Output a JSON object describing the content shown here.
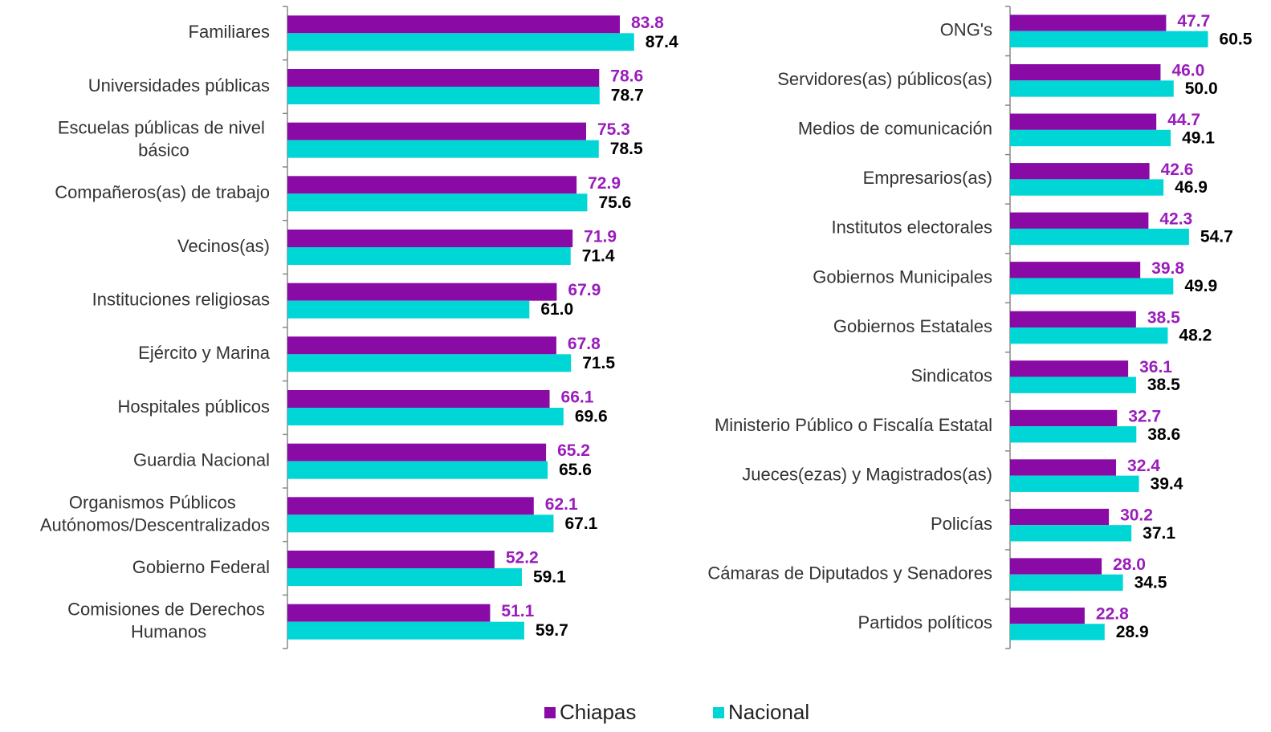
{
  "chart_data": [
    {
      "type": "bar",
      "orientation": "horizontal",
      "categories": [
        "Familiares",
        "Universidades públicas",
        "Escuelas públicas de nivel básico",
        "Compañeros(as) de trabajo",
        "Vecinos(as)",
        "Instituciones religiosas",
        "Ejército y Marina",
        "Hospitales públicos",
        "Guardia Nacional",
        "Organismos Públicos Autónomos/Descentralizados",
        "Gobierno Federal",
        "Comisiones de Derechos Humanos"
      ],
      "series": [
        {
          "name": "Chiapas",
          "color": "#8a0aa6",
          "label_color": "#9a1cbc",
          "values": [
            83.8,
            78.6,
            75.3,
            72.9,
            71.9,
            67.9,
            67.8,
            66.1,
            65.2,
            62.1,
            52.2,
            51.1
          ],
          "value_labels": [
            "83.8",
            "78.6",
            "75.3",
            "72.9",
            "71.9",
            "67.9",
            "67.8",
            "66.1",
            "65.2",
            "62.1",
            "52.2",
            "51.1"
          ]
        },
        {
          "name": "Nacional",
          "color": "#00d6d6",
          "label_color": "#000000",
          "values": [
            87.4,
            78.7,
            78.5,
            75.6,
            71.4,
            61.0,
            71.5,
            69.6,
            65.6,
            67.1,
            59.1,
            59.7
          ],
          "value_labels": [
            "87.4",
            "78.7",
            "78.5",
            "75.6",
            "71.4",
            "61.0",
            "71.5",
            "69.6",
            "65.6",
            "67.1",
            "59.1",
            "59.7"
          ]
        }
      ],
      "xlim": [
        0,
        100
      ],
      "legend": "bottom"
    },
    {
      "type": "bar",
      "orientation": "horizontal",
      "categories": [
        "ONG's",
        "Servidores(as) públicos(as)",
        "Medios de comunicación",
        "Empresarios(as)",
        "Institutos electorales",
        "Gobiernos Municipales",
        "Gobiernos Estatales",
        "Sindicatos",
        "Ministerio Público o Fiscalía Estatal",
        "Jueces(ezas) y Magistrados(as)",
        "Policías",
        "Cámaras de Diputados y Senadores",
        "Partidos políticos"
      ],
      "series": [
        {
          "name": "Chiapas",
          "color": "#8a0aa6",
          "label_color": "#9a1cbc",
          "values": [
            47.7,
            46.0,
            44.7,
            42.6,
            42.3,
            39.8,
            38.5,
            36.1,
            32.7,
            32.4,
            30.2,
            28.0,
            22.8
          ],
          "value_labels": [
            "47.7",
            "46.0",
            "44.7",
            "42.6",
            "42.3",
            "39.8",
            "38.5",
            "36.1",
            "32.7",
            "32.4",
            "30.2",
            "28.0",
            "22.8"
          ]
        },
        {
          "name": "Nacional",
          "color": "#00d6d6",
          "label_color": "#000000",
          "values": [
            60.5,
            50.0,
            49.1,
            46.9,
            54.7,
            49.9,
            48.2,
            38.5,
            38.6,
            39.4,
            37.1,
            34.5,
            28.9
          ],
          "value_labels": [
            "60.5",
            "50.0",
            "49.1",
            "46.9",
            "54.7",
            "49.9",
            "48.2",
            "38.5",
            "38.6",
            "39.4",
            "37.1",
            "34.5",
            "28.9"
          ]
        }
      ],
      "xlim": [
        0,
        80
      ]
    }
  ]
}
